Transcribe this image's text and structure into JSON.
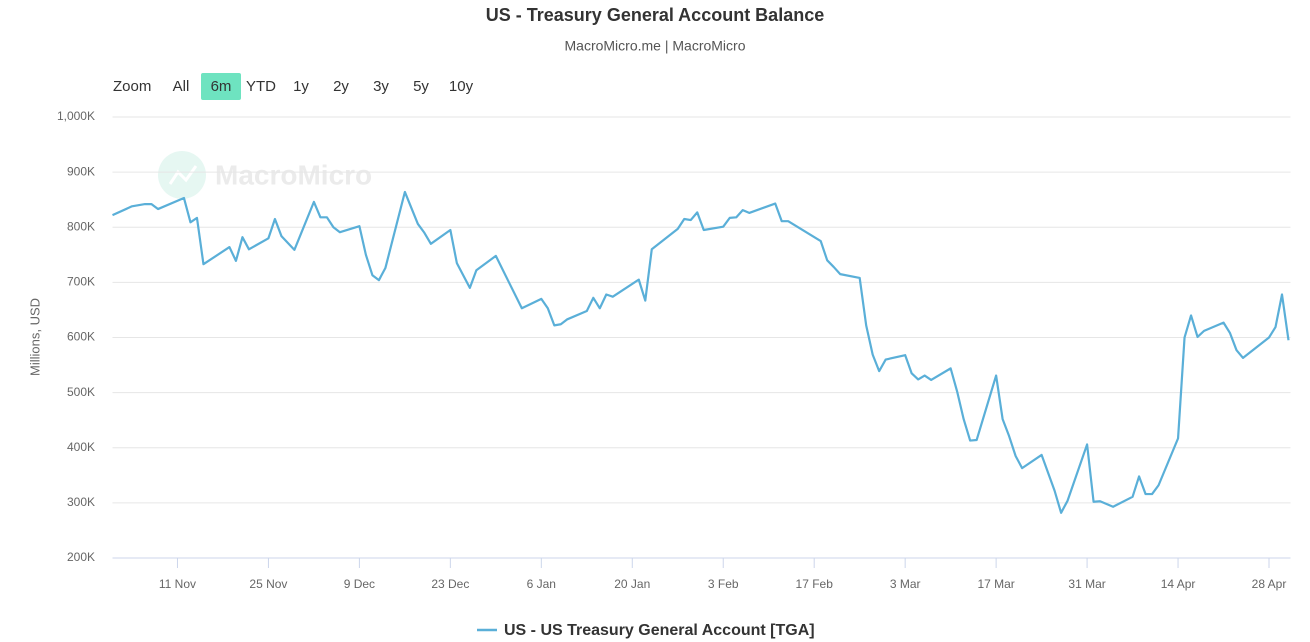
{
  "chart_data": {
    "type": "line",
    "title": "US - Treasury General Account Balance",
    "subtitle": "MacroMicro.me | MacroMicro",
    "watermark": "MacroMicro",
    "y_axis_label": "Millions, USD",
    "range_selector": {
      "label": "Zoom",
      "buttons": [
        "All",
        "6m",
        "YTD",
        "1y",
        "2y",
        "3y",
        "5y",
        "10y"
      ],
      "selected": "6m"
    },
    "x": [
      "1 Nov",
      "4 Nov",
      "6 Nov",
      "7 Nov",
      "8 Nov",
      "12 Nov",
      "13 Nov",
      "14 Nov",
      "15 Nov",
      "19 Nov",
      "20 Nov",
      "21 Nov",
      "22 Nov",
      "25 Nov",
      "26 Nov",
      "27 Nov",
      "29 Nov",
      "2 Dec",
      "3 Dec",
      "4 Dec",
      "5 Dec",
      "6 Dec",
      "9 Dec",
      "10 Dec",
      "11 Dec",
      "12 Dec",
      "13 Dec",
      "16 Dec",
      "18 Dec",
      "19 Dec",
      "20 Dec",
      "23 Dec",
      "24 Dec",
      "26 Dec",
      "27 Dec",
      "30 Dec",
      "3 Jan",
      "6 Jan",
      "7 Jan",
      "8 Jan",
      "9 Jan",
      "10 Jan",
      "13 Jan",
      "14 Jan",
      "15 Jan",
      "16 Jan",
      "17 Jan",
      "21 Jan",
      "22 Jan",
      "23 Jan",
      "27 Jan",
      "28 Jan",
      "29 Jan",
      "30 Jan",
      "31 Jan",
      "3 Feb",
      "4 Feb",
      "5 Feb",
      "6 Feb",
      "7 Feb",
      "11 Feb",
      "12 Feb",
      "13 Feb",
      "18 Feb",
      "19 Feb",
      "20 Feb",
      "21 Feb",
      "24 Feb",
      "25 Feb",
      "26 Feb",
      "27 Feb",
      "28 Feb",
      "3 Mar",
      "4 Mar",
      "5 Mar",
      "6 Mar",
      "7 Mar",
      "10 Mar",
      "11 Mar",
      "12 Mar",
      "13 Mar",
      "14 Mar",
      "17 Mar",
      "18 Mar",
      "19 Mar",
      "20 Mar",
      "21 Mar",
      "24 Mar",
      "26 Mar",
      "27 Mar",
      "28 Mar",
      "31 Mar",
      "1 Apr",
      "2 Apr",
      "4 Apr",
      "7 Apr",
      "8 Apr",
      "9 Apr",
      "10 Apr",
      "11 Apr",
      "14 Apr",
      "15 Apr",
      "16 Apr",
      "17 Apr",
      "18 Apr",
      "21 Apr",
      "22 Apr",
      "23 Apr",
      "24 Apr",
      "28 Apr",
      "29 Apr",
      "30 Apr",
      "1 May"
    ],
    "series": [
      {
        "name": "US - US Treasury General Account [TGA]",
        "color": "#5aafd8",
        "values": [
          822000,
          838000,
          842000,
          842000,
          833000,
          853000,
          809000,
          817000,
          733000,
          764000,
          739000,
          782000,
          760000,
          780000,
          815000,
          784000,
          759000,
          846000,
          818000,
          818000,
          800000,
          791000,
          802000,
          750000,
          713000,
          704000,
          726000,
          864000,
          806000,
          790000,
          770000,
          795000,
          735000,
          690000,
          722000,
          748000,
          653000,
          670000,
          653000,
          622000,
          624000,
          633000,
          648000,
          672000,
          653000,
          678000,
          674000,
          705000,
          667000,
          760000,
          797000,
          815000,
          813000,
          827000,
          795000,
          801000,
          817000,
          818000,
          831000,
          826000,
          843000,
          811000,
          811000,
          775000,
          740000,
          728000,
          715000,
          708000,
          622000,
          569000,
          539000,
          560000,
          568000,
          535000,
          524000,
          531000,
          523000,
          544000,
          502000,
          452000,
          413000,
          414000,
          531000,
          452000,
          421000,
          385000,
          363000,
          387000,
          322000,
          282000,
          304000,
          406000,
          302000,
          303000,
          293000,
          311000,
          348000,
          316000,
          316000,
          332000,
          417000,
          600000,
          640000,
          601000,
          612000,
          627000,
          608000,
          577000,
          563000,
          600000,
          619000,
          678000,
          595000
        ]
      }
    ],
    "xlim": [
      "1 Nov",
      "1 May"
    ],
    "xticks": [
      "11 Nov",
      "25 Nov",
      "9 Dec",
      "23 Dec",
      "6 Jan",
      "20 Jan",
      "3 Feb",
      "17 Feb",
      "3 Mar",
      "17 Mar",
      "31 Mar",
      "14 Apr",
      "28 Apr"
    ],
    "ylim": [
      200000,
      1000000
    ],
    "yticks": [
      {
        "value": 200000,
        "label": "200K"
      },
      {
        "value": 300000,
        "label": "300K"
      },
      {
        "value": 400000,
        "label": "400K"
      },
      {
        "value": 500000,
        "label": "500K"
      },
      {
        "value": 600000,
        "label": "600K"
      },
      {
        "value": 700000,
        "label": "700K"
      },
      {
        "value": 800000,
        "label": "800K"
      },
      {
        "value": 900000,
        "label": "900K"
      },
      {
        "value": 1000000,
        "label": "1,000K"
      }
    ],
    "grid": true,
    "legend": "bottom"
  }
}
